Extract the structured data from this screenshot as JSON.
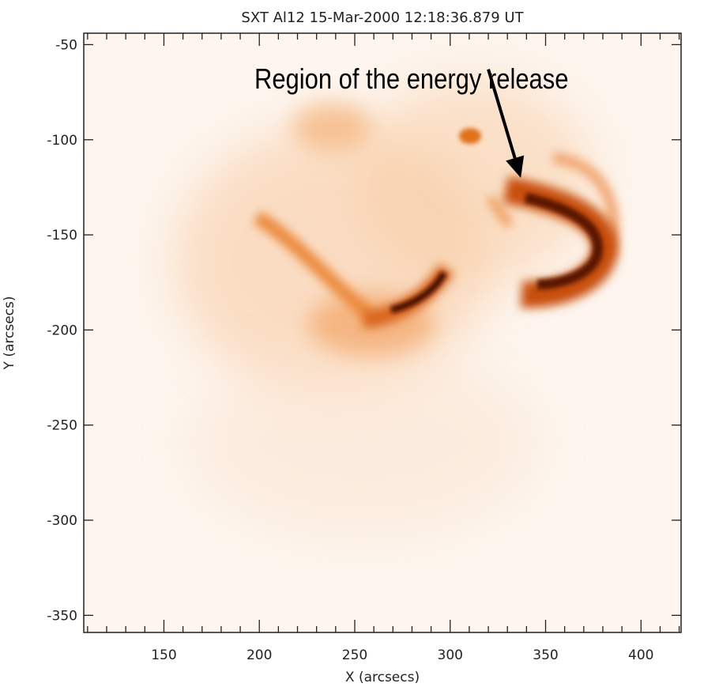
{
  "chart_data": {
    "type": "heatmap",
    "title": "SXT Al12 15-Mar-2000 12:18:36.879 UT",
    "xlabel": "X (arcsecs)",
    "ylabel": "Y (arcsecs)",
    "xlim": [
      108,
      421
    ],
    "ylim": [
      -359,
      -44
    ],
    "xticks": [
      150,
      200,
      250,
      300,
      350,
      400
    ],
    "yticks": [
      -50,
      -100,
      -150,
      -200,
      -250,
      -300,
      -350
    ],
    "xtick_labels": [
      "150",
      "200",
      "250",
      "300",
      "350",
      "400"
    ],
    "ytick_labels": [
      "-50",
      "-100",
      "-150",
      "-200",
      "-250",
      "-300",
      "-350"
    ],
    "colormap": "white-orange-brown",
    "annotation": {
      "text": "Region of the energy release",
      "arrow_from": [
        320,
        -63
      ],
      "arrow_to": [
        337,
        -120
      ]
    }
  },
  "colors": {
    "background": "#fdf3ea",
    "mid": "#f39a4a",
    "high": "#c8500e",
    "peak": "#4a0d02"
  }
}
